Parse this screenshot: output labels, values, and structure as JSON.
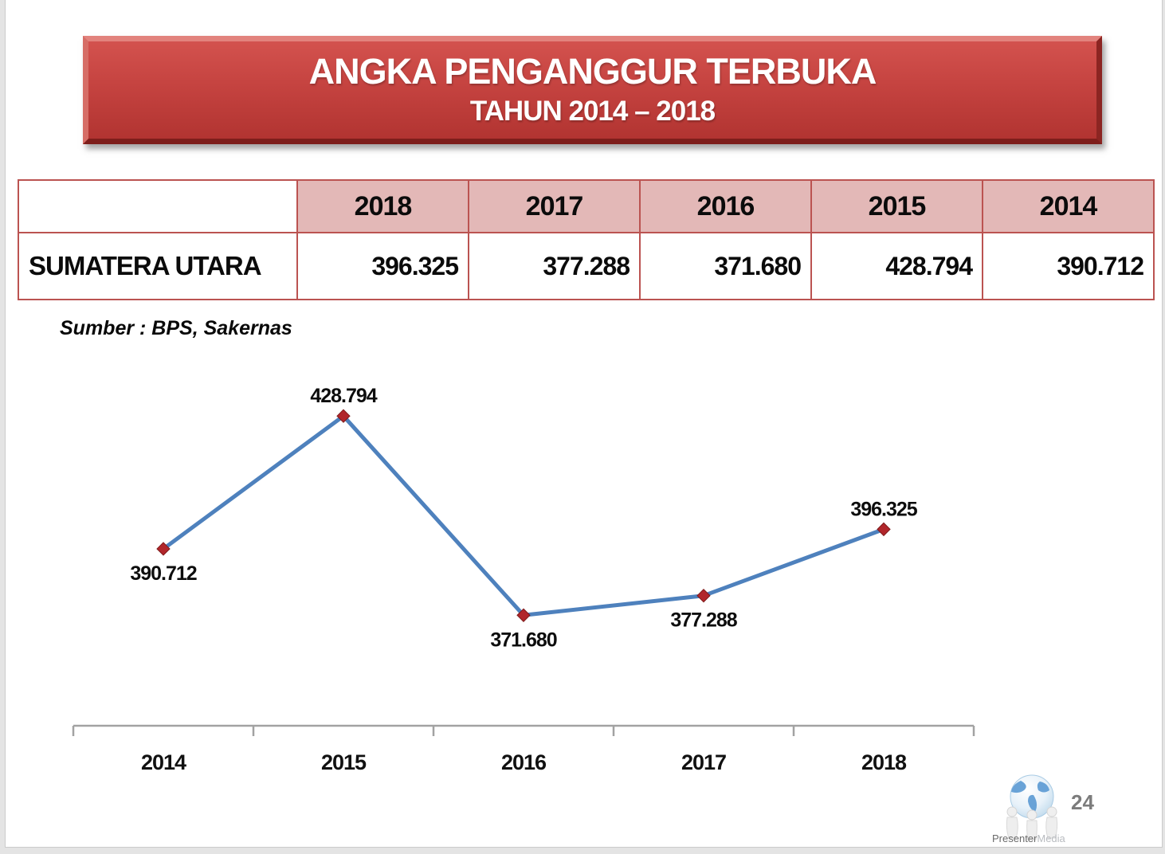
{
  "slide": {
    "title_line1": "ANGKA PENGANGGUR TERBUKA",
    "title_line2": "TAHUN 2014 – 2018",
    "source_note": "Sumber : BPS, Sakernas",
    "page_number": "24",
    "logo": {
      "text_primary": "Presenter",
      "text_secondary": "Media"
    }
  },
  "table": {
    "corner_label": "",
    "col_headers": [
      "2018",
      "2017",
      "2016",
      "2015",
      "2014"
    ],
    "rows": [
      {
        "label": "SUMATERA UTARA",
        "values": [
          "396.325",
          "377.288",
          "371.680",
          "428.794",
          "390.712"
        ]
      }
    ]
  },
  "chart_data": {
    "type": "line",
    "categories": [
      "2014",
      "2015",
      "2016",
      "2017",
      "2018"
    ],
    "values": [
      390712,
      428794,
      371680,
      377288,
      396325
    ],
    "data_labels": [
      "390.712",
      "428.794",
      "371.680",
      "377.288",
      "396.325"
    ],
    "title": "",
    "xlabel": "",
    "ylabel": "",
    "ylim": [
      340000,
      443000
    ],
    "grid": false,
    "legend": false,
    "line_color": "#4e81bd",
    "marker_color": "#b1262b",
    "axis_color": "#a2a2a2",
    "label_color": "#0d0d0d",
    "category_color": "#111111"
  },
  "colors": {
    "banner_red": "#c04341",
    "table_border": "#bb5351",
    "header_fill": "#e3b8b7",
    "page_number_gray": "#7c7c7c"
  }
}
